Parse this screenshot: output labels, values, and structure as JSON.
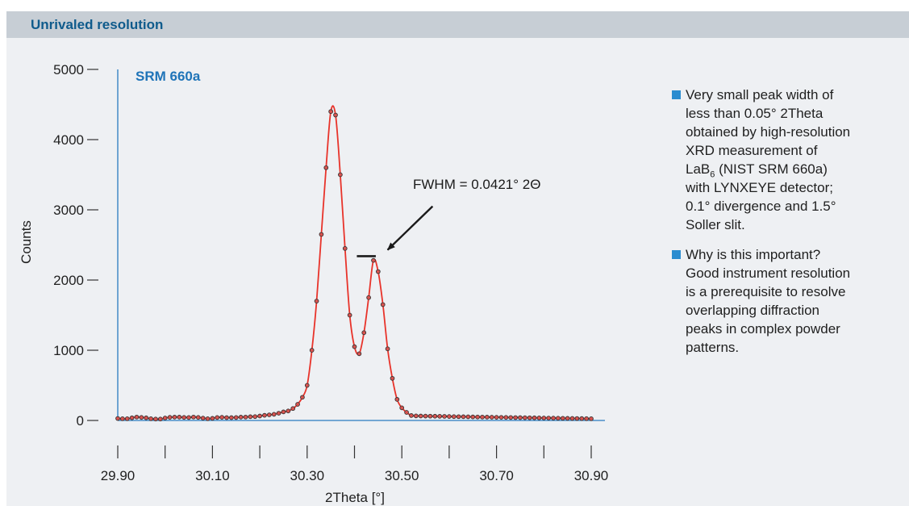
{
  "header": {
    "title": "Unrivaled resolution"
  },
  "chart_data": {
    "type": "line",
    "title": "SRM 660a",
    "xlabel": "2Theta [°]",
    "ylabel": "Counts",
    "xlim": [
      29.88,
      30.92
    ],
    "ylim": [
      0,
      5000
    ],
    "x_ticks": [
      "29.90",
      "30.10",
      "30.30",
      "30.50",
      "30.70",
      "30.90"
    ],
    "x_tick_values": [
      29.9,
      30.1,
      30.3,
      30.5,
      30.7,
      30.9
    ],
    "x_minor_ticks": [
      29.9,
      30.0,
      30.1,
      30.2,
      30.3,
      30.4,
      30.5,
      30.6,
      30.7,
      30.8,
      30.9
    ],
    "y_ticks": [
      "0",
      "1000",
      "2000",
      "3000",
      "4000",
      "5000"
    ],
    "y_tick_values": [
      0,
      1000,
      2000,
      3000,
      4000,
      5000
    ],
    "grid": false,
    "line_color": "#e8332a",
    "marker_color": "#333333",
    "axis_color": "#2a7bc0",
    "annotation": {
      "text": "FWHM = 0.0421° 2Θ",
      "fwhm_x": [
        30.405,
        30.445
      ],
      "fwhm_y": 2340,
      "arrow_from": [
        30.565,
        3050
      ],
      "arrow_to": [
        30.47,
        2430
      ]
    },
    "series": [
      {
        "x": [
          29.9,
          29.91,
          29.92,
          29.93,
          29.94,
          29.95,
          29.96,
          29.97,
          29.98,
          29.99,
          30.0,
          30.01,
          30.02,
          30.03,
          30.04,
          30.05,
          30.06,
          30.07,
          30.08,
          30.09,
          30.1,
          30.11,
          30.12,
          30.13,
          30.14,
          30.15,
          30.16,
          30.17,
          30.18,
          30.19,
          30.2,
          30.21,
          30.22,
          30.23,
          30.24,
          30.25,
          30.26,
          30.27,
          30.28,
          30.29,
          30.3,
          30.31,
          30.32,
          30.33,
          30.34,
          30.35,
          30.36,
          30.37,
          30.38,
          30.39,
          30.4,
          30.41,
          30.42,
          30.43,
          30.44,
          30.45,
          30.46,
          30.47,
          30.48,
          30.49,
          30.5,
          30.51,
          30.52,
          30.53,
          30.54,
          30.55,
          30.56,
          30.57,
          30.58,
          30.59,
          30.6,
          30.61,
          30.62,
          30.63,
          30.64,
          30.65,
          30.66,
          30.67,
          30.68,
          30.69,
          30.7,
          30.71,
          30.72,
          30.73,
          30.74,
          30.75,
          30.76,
          30.77,
          30.78,
          30.79,
          30.8,
          30.81,
          30.82,
          30.83,
          30.84,
          30.85,
          30.86,
          30.87,
          30.88,
          30.89,
          30.9
        ],
        "y": [
          28,
          25,
          25,
          37,
          48,
          43,
          37,
          25,
          20,
          20,
          35,
          45,
          47,
          47,
          43,
          42,
          48,
          43,
          33,
          25,
          30,
          42,
          45,
          40,
          40,
          42,
          47,
          48,
          53,
          55,
          63,
          73,
          80,
          88,
          103,
          122,
          135,
          170,
          230,
          330,
          500,
          1000,
          1700,
          2650,
          3600,
          4400,
          4350,
          3500,
          2450,
          1500,
          1050,
          950,
          1250,
          1750,
          2280,
          2120,
          1650,
          1020,
          600,
          300,
          180,
          115,
          70,
          65,
          63,
          62,
          61,
          60,
          59,
          58,
          56,
          55,
          54,
          53,
          52,
          50,
          49,
          48,
          47,
          46,
          45,
          44,
          43,
          42,
          41,
          40,
          39,
          38,
          37,
          36,
          35,
          34,
          33,
          32,
          31,
          30,
          29,
          28,
          27,
          26,
          25
        ]
      }
    ]
  },
  "notes": [
    {
      "text": "Very small peak width of\nless than 0.05° 2Theta\nobtained by high-resolution\nXRD measurement of\n"
    },
    {
      "text": "Why is this important?\nGood instrument resolution\nis a prerequisite to resolve\noverlapping diffraction\npeaks in complex powder\npatterns."
    }
  ],
  "note1_formula": {
    "base": "LaB",
    "sub": "6",
    "rest": " (NIST SRM 660a)\nwith LYNXEYE detector;\n0.1° divergence and 1.5°\nSoller slit."
  },
  "colors": {
    "header_bg": "#c7ced5",
    "panel_bg": "#eef0f3",
    "title": "#0f5b8c",
    "bullet": "#2a8cd0"
  }
}
